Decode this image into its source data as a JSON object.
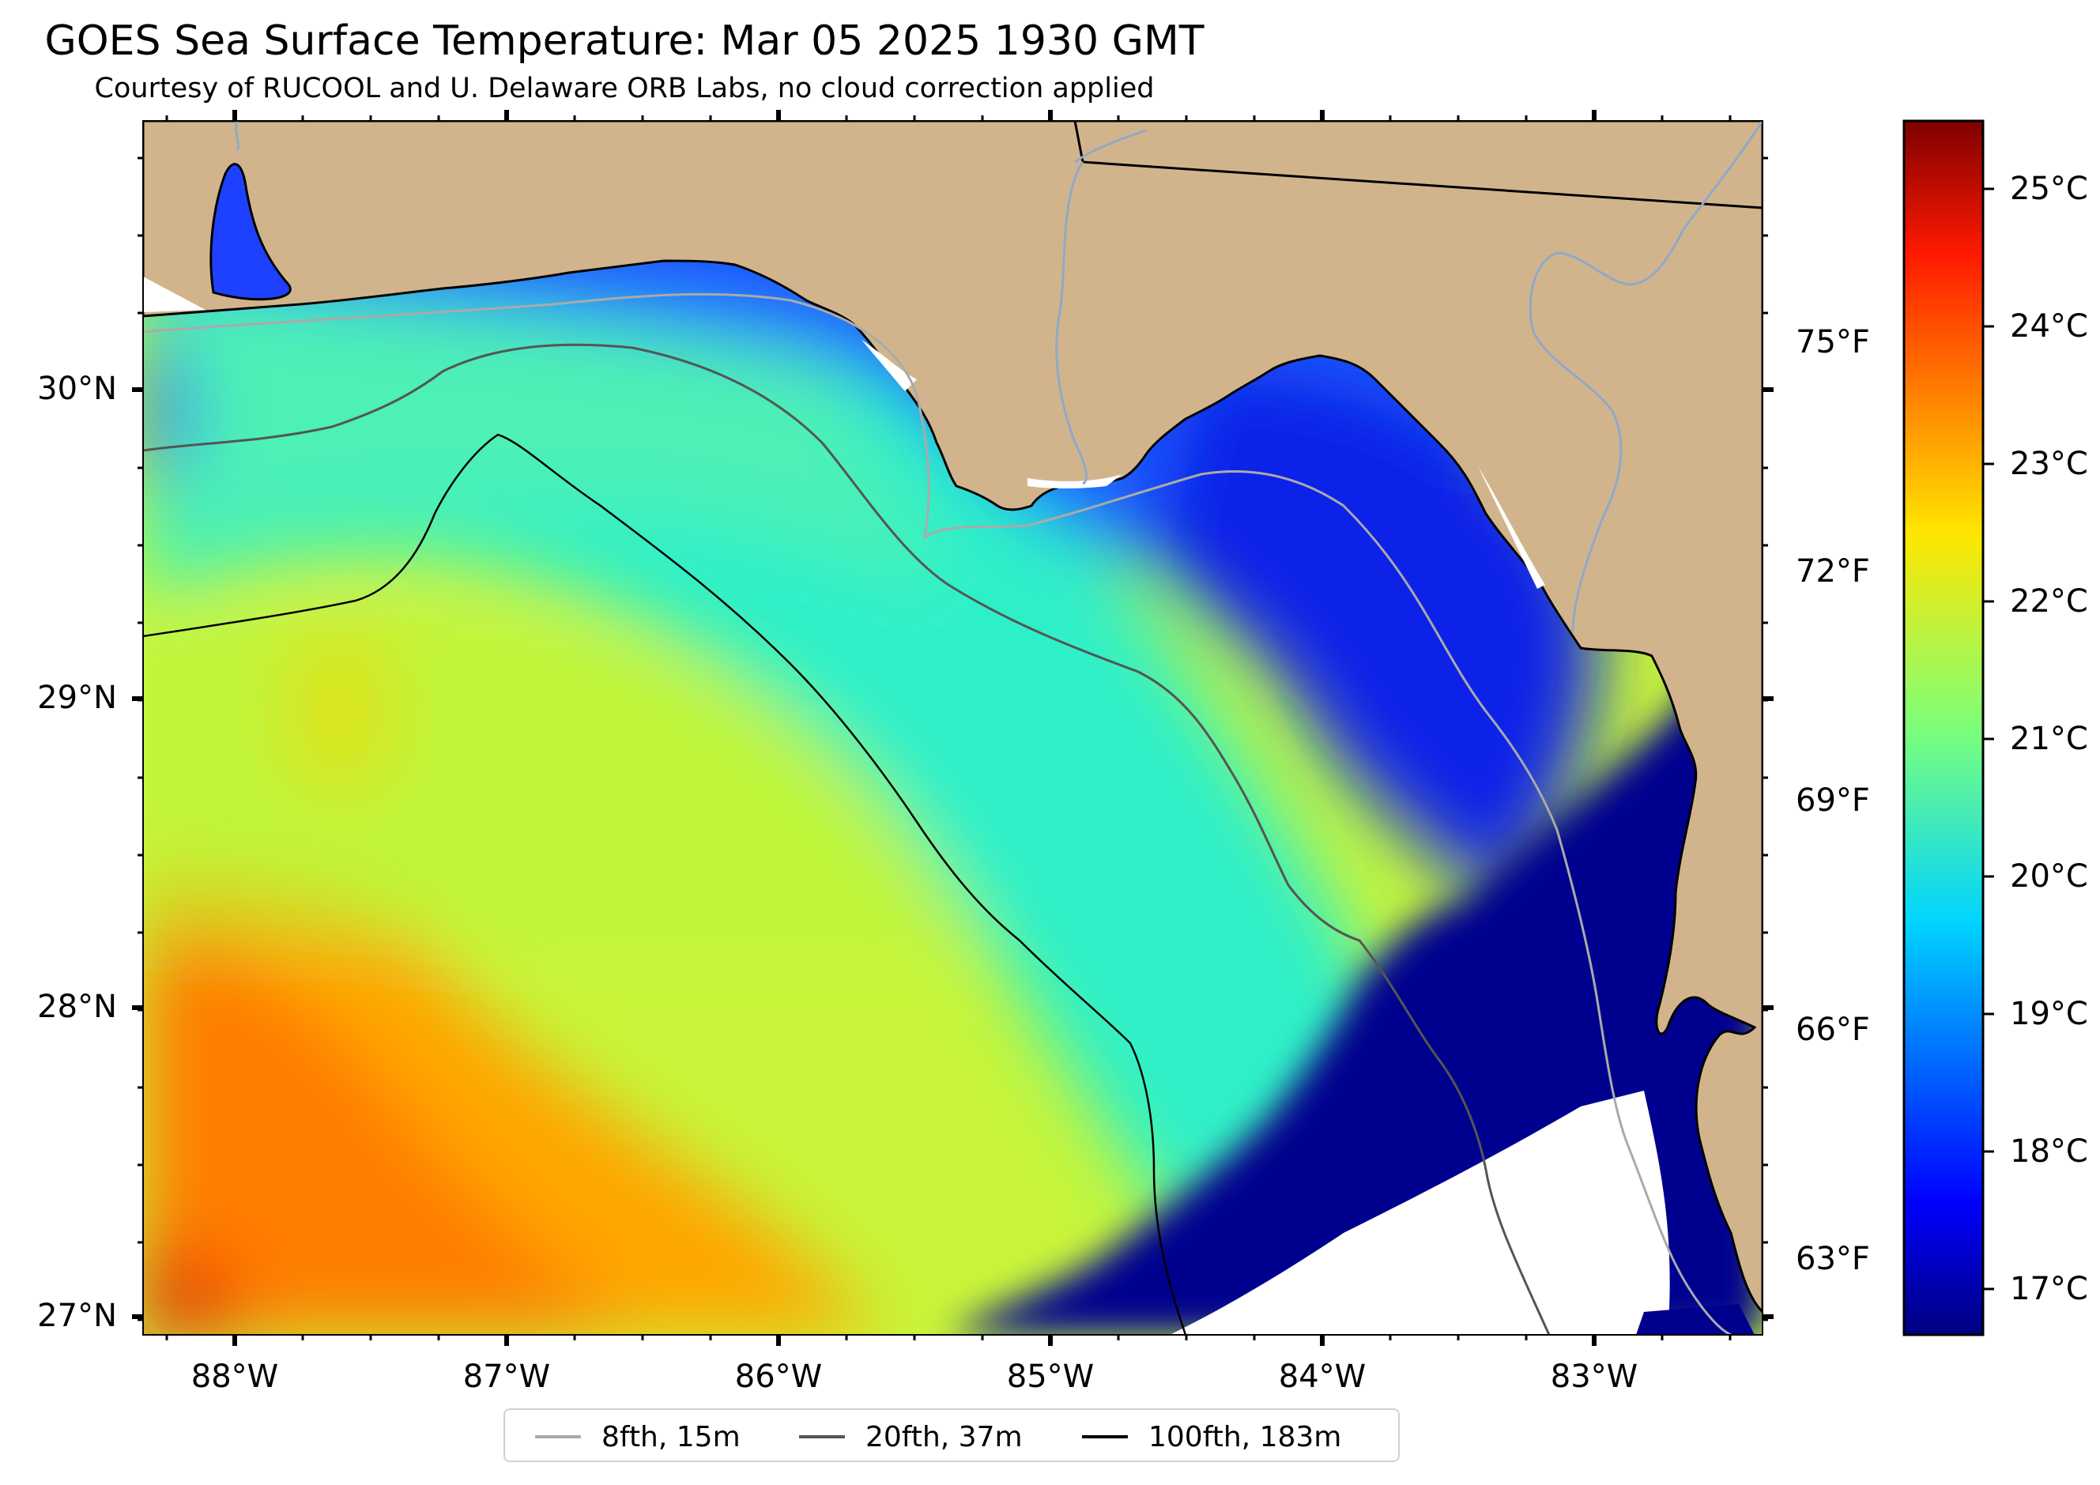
{
  "title": "GOES Sea Surface Temperature: Mar 05 2025 1930 GMT",
  "subtitle": "Courtesy of RUCOOL and U. Delaware ORB Labs, no cloud correction applied",
  "map": {
    "latitude_labels": [
      "30°N",
      "29°N",
      "28°N",
      "27°N"
    ],
    "longitude_labels": [
      "88°W",
      "87°W",
      "86°W",
      "85°W",
      "84°W",
      "83°W"
    ],
    "fahrenheit_labels": [
      "75°F",
      "72°F",
      "69°F",
      "66°F",
      "63°F"
    ],
    "land_color": "#d2b48c",
    "no_data_color": "#ffffff"
  },
  "colorbar": {
    "colormap": "jet",
    "celsius_labels": [
      "25°C",
      "24°C",
      "23°C",
      "22°C",
      "21°C",
      "20°C",
      "19°C",
      "18°C",
      "17°C"
    ]
  },
  "legend": {
    "items": [
      {
        "label": "8fth, 15m",
        "color": "#aaaaaa"
      },
      {
        "label": "20fth, 37m",
        "color": "#555555"
      },
      {
        "label": "100fth, 183m",
        "color": "#000000"
      }
    ]
  }
}
